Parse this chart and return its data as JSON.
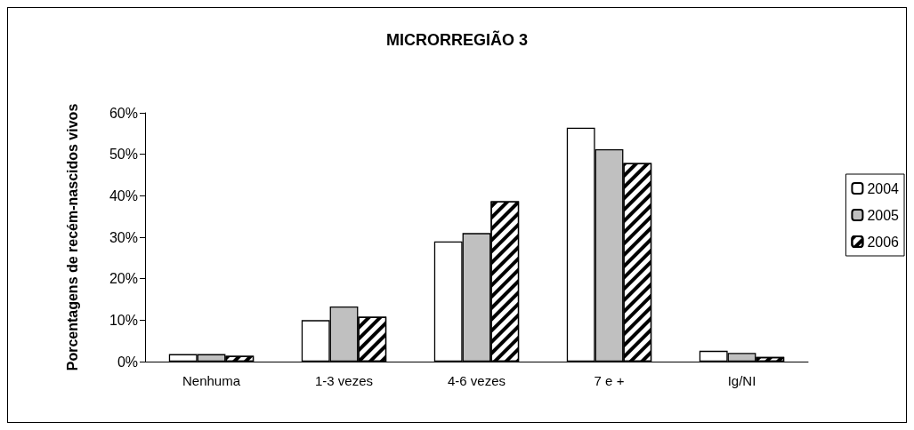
{
  "chart_data": {
    "type": "bar",
    "title": "MICRORREGIÃO 3",
    "ylabel": "Porcentagens de recém-nascidos vivos",
    "categories": [
      "Nenhuma",
      "1-3 vezes",
      "4-6 vezes",
      "7 e +",
      "Ig/NI"
    ],
    "series": [
      {
        "name": "2004",
        "color": "#ffffff",
        "values": [
          1.8,
          10,
          29,
          56.4,
          2.6
        ]
      },
      {
        "name": "2005",
        "color": "#c0c0c0",
        "values": [
          1.8,
          13.3,
          31,
          51.2,
          2.1
        ]
      },
      {
        "name": "2006",
        "color": "#000000",
        "values": [
          1.4,
          10.8,
          38.7,
          47.9,
          1.1
        ]
      }
    ],
    "ylim": [
      0,
      60
    ],
    "yticks": [
      {
        "value": 0,
        "label": "0%"
      },
      {
        "value": 10,
        "label": "10%"
      },
      {
        "value": 20,
        "label": "20%"
      },
      {
        "value": 30,
        "label": "30%"
      },
      {
        "value": 40,
        "label": "40%"
      },
      {
        "value": 50,
        "label": "50%"
      },
      {
        "value": 60,
        "label": "60%"
      }
    ],
    "grid": false,
    "legend": "right"
  }
}
